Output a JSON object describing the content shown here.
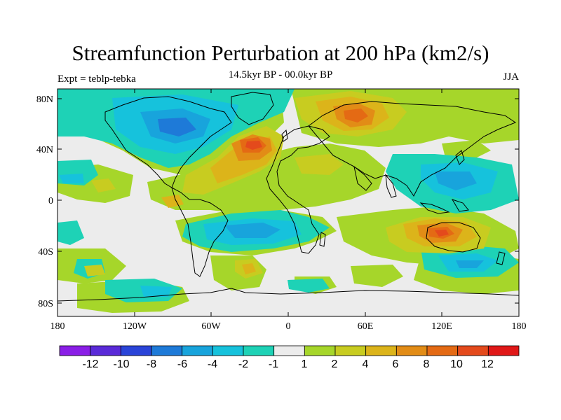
{
  "header": {
    "title": "Streamfunction Perturbation at 200 hPa (km2/s)",
    "subtitle": "14.5kyr BP - 00.0kyr BP",
    "left_string": "Expt = teblp-tebka",
    "right_string": "JJA"
  },
  "axes": {
    "x_ticks": [
      "180",
      "120W",
      "60W",
      "0",
      "60E",
      "120E",
      "180"
    ],
    "y_ticks": [
      "80N",
      "40N",
      "0",
      "40S",
      "80S"
    ]
  },
  "colorbar": {
    "labels": [
      "-12",
      "-10",
      "-8",
      "-6",
      "-4",
      "-2",
      "-1",
      "1",
      "2",
      "4",
      "6",
      "8",
      "10",
      "12"
    ],
    "colors": [
      "#8a1ee6",
      "#5a2ad8",
      "#2a44d8",
      "#1e7ad8",
      "#18a4dc",
      "#16c2dc",
      "#1ed2b6",
      "#ececec",
      "#a6d62a",
      "#c8cc20",
      "#dcb41a",
      "#e28c16",
      "#e46a14",
      "#e44a1c",
      "#e01818"
    ]
  },
  "map_fields": {
    "projection": "cylindrical equidistant",
    "lon_range": [
      -180,
      180
    ],
    "lat_range": [
      -90,
      90
    ],
    "fill_centers": [
      {
        "name": "north-america-negative",
        "lon": -110,
        "lat": 55,
        "rank": 4
      },
      {
        "name": "north-atlantic-positive",
        "lon": -25,
        "lat": 45,
        "rank": 12
      },
      {
        "name": "siberia-positive",
        "lon": 60,
        "lat": 60,
        "rank": 11
      },
      {
        "name": "australia-positive",
        "lon": 125,
        "lat": -28,
        "rank": 11
      },
      {
        "name": "southern-ocean-negative",
        "lon": 140,
        "lat": -50,
        "rank": 4
      },
      {
        "name": "south-atlantic-negative",
        "lon": -60,
        "lat": -27,
        "rank": 4
      },
      {
        "name": "west-pacific-negative",
        "lon": 120,
        "lat": 15,
        "rank": 4
      }
    ]
  }
}
